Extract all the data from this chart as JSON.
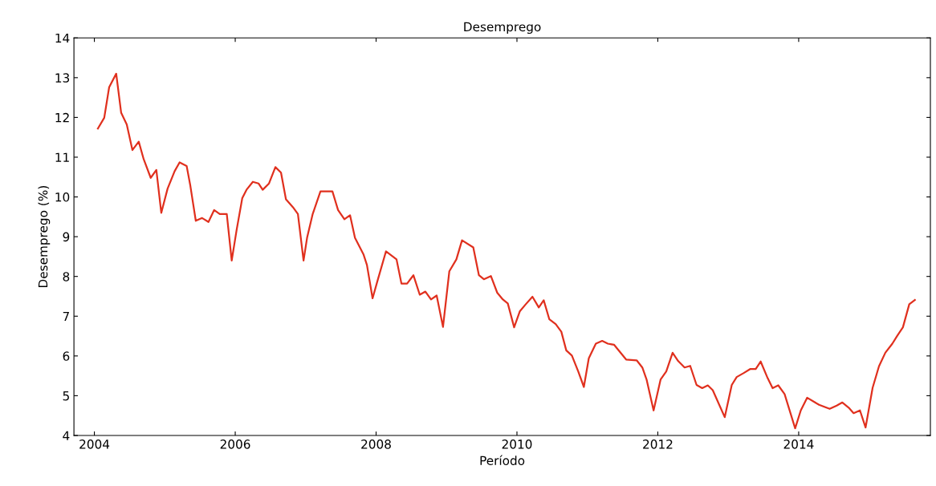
{
  "chart_data": {
    "type": "line",
    "title": "Desemprego",
    "xlabel": "Período",
    "ylabel": "Desemprego (%)",
    "xlim": [
      2003.71,
      2015.87
    ],
    "ylim": [
      4,
      14
    ],
    "xticks": [
      2004,
      2006,
      2008,
      2010,
      2012,
      2014
    ],
    "yticks": [
      4,
      5,
      6,
      7,
      8,
      9,
      10,
      11,
      12,
      13,
      14
    ],
    "grid": false,
    "legend": false,
    "marker": "none",
    "line_style": "solid",
    "series": [
      {
        "color": "#e0301e",
        "x": [
          2004.05,
          2004.14,
          2004.21,
          2004.31,
          2004.38,
          2004.46,
          2004.54,
          2004.63,
          2004.7,
          2004.8,
          2004.88,
          2004.95,
          2005.04,
          2005.14,
          2005.21,
          2005.31,
          2005.36,
          2005.44,
          2005.53,
          2005.62,
          2005.7,
          2005.78,
          2005.88,
          2005.95,
          2006.02,
          2006.1,
          2006.16,
          2006.25,
          2006.33,
          2006.39,
          2006.48,
          2006.57,
          2006.65,
          2006.72,
          2006.82,
          2006.89,
          2006.97,
          2007.02,
          2007.1,
          2007.21,
          2007.31,
          2007.38,
          2007.46,
          2007.55,
          2007.63,
          2007.7,
          2007.82,
          2007.87,
          2007.95,
          2008.02,
          2008.14,
          2008.29,
          2008.36,
          2008.44,
          2008.53,
          2008.62,
          2008.7,
          2008.78,
          2008.86,
          2008.95,
          2009.04,
          2009.14,
          2009.22,
          2009.38,
          2009.46,
          2009.53,
          2009.63,
          2009.72,
          2009.8,
          2009.87,
          2009.96,
          2010.04,
          2010.12,
          2010.22,
          2010.31,
          2010.38,
          2010.46,
          2010.55,
          2010.63,
          2010.7,
          2010.78,
          2010.87,
          2010.95,
          2011.02,
          2011.12,
          2011.21,
          2011.29,
          2011.38,
          2011.55,
          2011.7,
          2011.78,
          2011.84,
          2011.94,
          2012.04,
          2012.12,
          2012.21,
          2012.29,
          2012.38,
          2012.46,
          2012.55,
          2012.63,
          2012.71,
          2012.78,
          2012.95,
          2013.05,
          2013.12,
          2013.22,
          2013.31,
          2013.39,
          2013.46,
          2013.56,
          2013.63,
          2013.71,
          2013.8,
          2013.95,
          2014.03,
          2014.12,
          2014.29,
          2014.44,
          2014.54,
          2014.62,
          2014.71,
          2014.78,
          2014.87,
          2014.95,
          2015.05,
          2015.14,
          2015.23,
          2015.33,
          2015.4,
          2015.48,
          2015.57,
          2015.65
        ],
        "values": [
          11.72,
          11.99,
          12.76,
          13.1,
          12.12,
          11.82,
          11.18,
          11.39,
          10.95,
          10.48,
          10.68,
          9.6,
          10.21,
          10.65,
          10.87,
          10.78,
          10.31,
          9.4,
          9.47,
          9.37,
          9.67,
          9.57,
          9.57,
          8.4,
          9.17,
          9.97,
          10.18,
          10.38,
          10.34,
          10.18,
          10.34,
          10.75,
          10.61,
          9.94,
          9.74,
          9.57,
          8.4,
          8.97,
          9.57,
          10.14,
          10.14,
          10.14,
          9.67,
          9.44,
          9.54,
          8.97,
          8.56,
          8.29,
          7.45,
          7.89,
          8.63,
          8.43,
          7.82,
          7.82,
          8.03,
          7.54,
          7.62,
          7.42,
          7.52,
          6.73,
          8.13,
          8.43,
          8.91,
          8.73,
          8.03,
          7.93,
          8.01,
          7.59,
          7.42,
          7.32,
          6.72,
          7.12,
          7.29,
          7.49,
          7.22,
          7.4,
          6.92,
          6.8,
          6.61,
          6.14,
          6.01,
          5.61,
          5.22,
          5.94,
          6.31,
          6.38,
          6.31,
          6.28,
          5.91,
          5.89,
          5.71,
          5.41,
          4.63,
          5.41,
          5.61,
          6.08,
          5.87,
          5.71,
          5.75,
          5.27,
          5.19,
          5.26,
          5.14,
          4.46,
          5.27,
          5.47,
          5.57,
          5.67,
          5.67,
          5.86,
          5.44,
          5.19,
          5.26,
          5.04,
          4.18,
          4.63,
          4.95,
          4.77,
          4.67,
          4.75,
          4.83,
          4.7,
          4.56,
          4.63,
          4.2,
          5.2,
          5.74,
          6.08,
          6.31,
          6.51,
          6.72,
          7.3,
          7.41
        ]
      }
    ]
  }
}
